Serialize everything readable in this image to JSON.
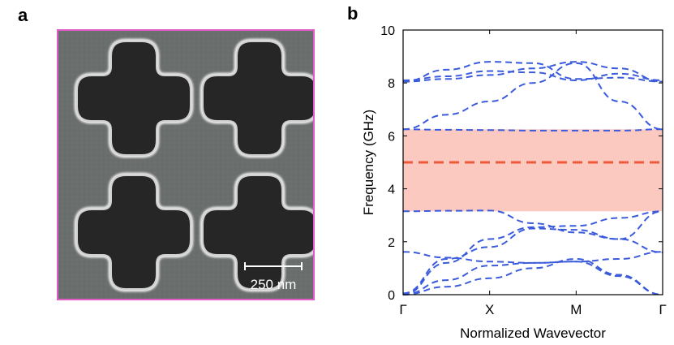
{
  "figure": {
    "panel_a_label": "a",
    "panel_b_label": "b",
    "scale_bar_label": "250 nm"
  },
  "colors": {
    "frame": "#e05ac8",
    "sem_background": "#6b6f6e",
    "hole": "#262626",
    "edge_glow": "#e8e8e8",
    "bands": "#3b5bdb",
    "band_gap_fill": "#fbc9c0",
    "mid_gap_line": "#ef5a3c"
  },
  "chart_data": {
    "type": "line",
    "title": "",
    "xlabel": "Normalized Wavevector",
    "ylabel": "Frequency (GHz)",
    "ylim": [
      0,
      10
    ],
    "yticks": [
      0,
      2,
      4,
      6,
      8,
      10
    ],
    "x_ticks": [
      {
        "pos": 0,
        "label": "Γ"
      },
      {
        "pos": 1,
        "label": "X"
      },
      {
        "pos": 2,
        "label": "M"
      },
      {
        "pos": 3,
        "label": "Γ"
      }
    ],
    "xlim": [
      0,
      3
    ],
    "grid": false,
    "band_gap": {
      "lower": 3.15,
      "upper": 6.25
    },
    "mid_gap_line": 5.0,
    "series": [
      {
        "x": [
          0,
          0.5,
          1,
          1.5,
          2,
          2.5,
          3
        ],
        "y": [
          0,
          0.55,
          1.1,
          1.2,
          1.25,
          0.7,
          0
        ]
      },
      {
        "x": [
          0,
          0.5,
          1,
          1.5,
          2,
          2.5,
          3
        ],
        "y": [
          0,
          0.3,
          0.62,
          1.0,
          1.35,
          0.75,
          0
        ]
      },
      {
        "x": [
          0,
          0.5,
          1,
          1.5,
          2,
          2.5,
          3
        ],
        "y": [
          1.62,
          1.4,
          1.25,
          1.2,
          1.25,
          1.35,
          1.62
        ]
      },
      {
        "x": [
          0,
          0.5,
          1,
          1.5,
          2,
          2.5,
          3
        ],
        "y": [
          0,
          1.2,
          2.1,
          2.55,
          2.6,
          2.9,
          3.15
        ]
      },
      {
        "x": [
          0,
          0.5,
          1,
          1.5,
          2,
          2.5,
          3
        ],
        "y": [
          0.05,
          1.35,
          1.8,
          2.5,
          2.45,
          2.1,
          1.6
        ]
      },
      {
        "x": [
          0,
          0.5,
          1,
          1.5,
          2,
          2.5,
          3
        ],
        "y": [
          3.15,
          3.17,
          3.18,
          2.7,
          2.35,
          2.1,
          3.15
        ]
      },
      {
        "x": [
          0,
          0.5,
          1,
          1.5,
          2,
          2.5,
          3
        ],
        "y": [
          6.25,
          6.23,
          6.22,
          6.2,
          6.2,
          6.2,
          6.25
        ]
      },
      {
        "x": [
          0,
          0.5,
          1,
          1.5,
          2,
          2.5,
          3
        ],
        "y": [
          6.25,
          6.8,
          7.3,
          8.0,
          8.75,
          7.3,
          6.25
        ]
      },
      {
        "x": [
          0,
          0.5,
          1,
          1.5,
          2,
          2.5,
          3
        ],
        "y": [
          8.05,
          8.15,
          8.3,
          8.55,
          8.8,
          8.55,
          8.05
        ]
      },
      {
        "x": [
          0,
          0.5,
          1,
          1.5,
          2,
          2.5,
          3
        ],
        "y": [
          8.05,
          8.5,
          8.8,
          8.75,
          8.15,
          8.2,
          8.05
        ]
      },
      {
        "x": [
          0,
          0.5,
          1,
          1.5,
          2,
          2.5,
          3
        ],
        "y": [
          8.1,
          8.25,
          8.45,
          8.4,
          8.1,
          8.35,
          8.1
        ]
      }
    ]
  }
}
